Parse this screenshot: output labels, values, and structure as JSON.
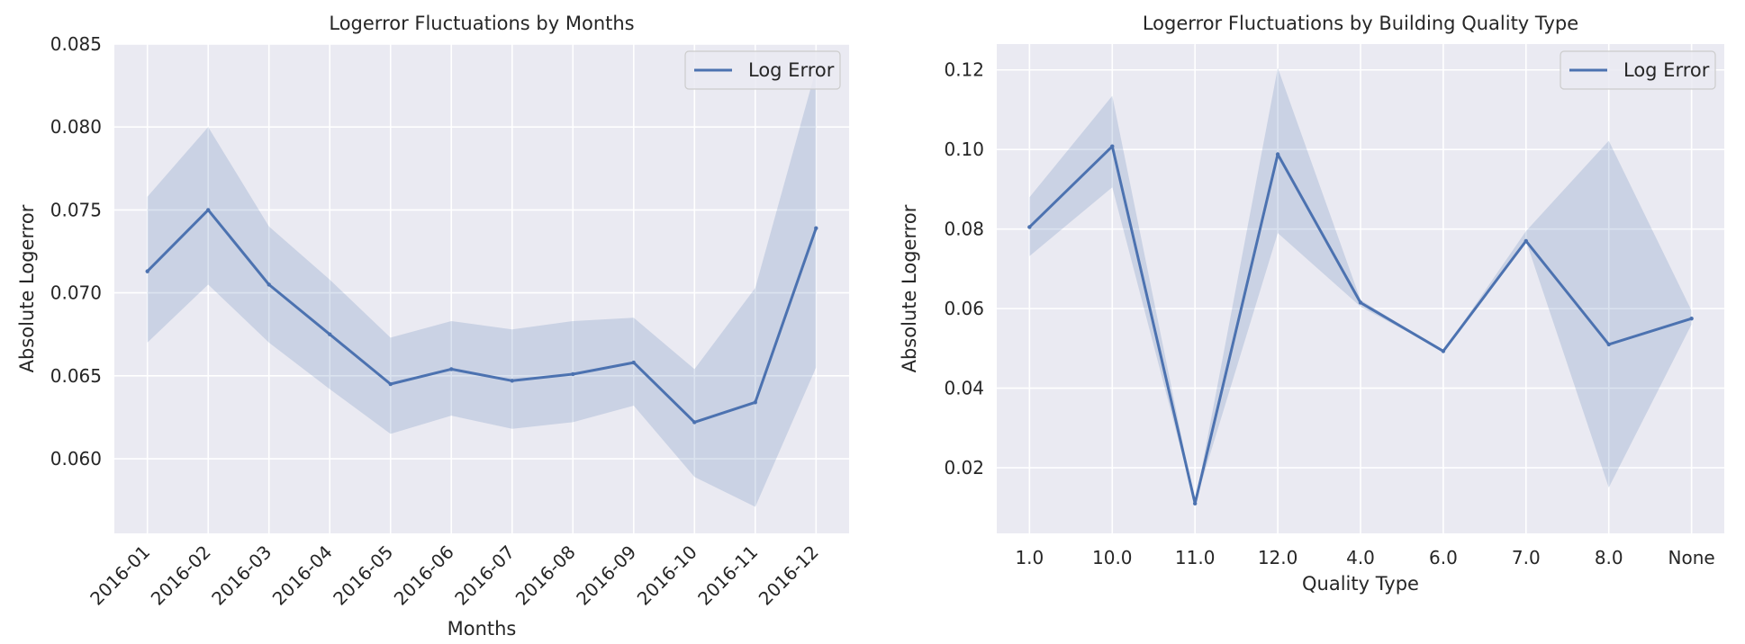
{
  "chart_data": [
    {
      "type": "line",
      "title": "Logerror Fluctuations by Months",
      "xlabel": "Months",
      "ylabel": "Absolute Logerror",
      "categories": [
        "2016-01",
        "2016-02",
        "2016-03",
        "2016-04",
        "2016-05",
        "2016-06",
        "2016-07",
        "2016-08",
        "2016-09",
        "2016-10",
        "2016-11",
        "2016-12"
      ],
      "series": [
        {
          "name": "Log Error",
          "values": [
            0.0713,
            0.075,
            0.0705,
            0.0675,
            0.0645,
            0.0654,
            0.0647,
            0.0651,
            0.0658,
            0.0622,
            0.0634,
            0.0739
          ],
          "ci_low": [
            0.067,
            0.0705,
            0.067,
            0.0642,
            0.0615,
            0.0626,
            0.0618,
            0.0622,
            0.0632,
            0.0589,
            0.0571,
            0.0655
          ],
          "ci_high": [
            0.0758,
            0.08,
            0.074,
            0.0708,
            0.0673,
            0.0683,
            0.0678,
            0.0683,
            0.0685,
            0.0654,
            0.0703,
            0.0835
          ]
        }
      ],
      "ylim": [
        0.0555,
        0.085
      ],
      "yticks": [
        0.06,
        0.065,
        0.07,
        0.075,
        0.08,
        0.085
      ],
      "ytick_labels": [
        "0.060",
        "0.065",
        "0.070",
        "0.075",
        "0.080",
        "0.085"
      ],
      "grid": true,
      "legend": "top-right",
      "xtick_rotation": 45
    },
    {
      "type": "line",
      "title": "Logerror Fluctuations by Building Quality Type",
      "xlabel": "Quality Type",
      "ylabel": "Absolute Logerror",
      "categories": [
        "1.0",
        "10.0",
        "11.0",
        "12.0",
        "4.0",
        "6.0",
        "7.0",
        "8.0",
        "None"
      ],
      "series": [
        {
          "name": "Log Error",
          "values": [
            0.0805,
            0.1008,
            0.011,
            0.0988,
            0.0615,
            0.0493,
            0.077,
            0.051,
            0.0575
          ],
          "ci_low": [
            0.0732,
            0.0905,
            0.011,
            0.079,
            0.0605,
            0.0493,
            0.077,
            0.015,
            0.056
          ],
          "ci_high": [
            0.088,
            0.1135,
            0.011,
            0.1205,
            0.0622,
            0.0493,
            0.0795,
            0.1022,
            0.0595
          ]
        }
      ],
      "ylim": [
        0.0035,
        0.1265
      ],
      "yticks": [
        0.02,
        0.04,
        0.06,
        0.08,
        0.1,
        0.12
      ],
      "ytick_labels": [
        "0.02",
        "0.04",
        "0.06",
        "0.08",
        "0.10",
        "0.12"
      ],
      "grid": true,
      "legend": "top-right",
      "xtick_rotation": 0
    }
  ],
  "colors": {
    "background": "#eaeaf2",
    "grid": "#ffffff",
    "line": "#4c72b0",
    "band": "#4c72b0",
    "text": "#262626",
    "legend_edge": "#cccccc"
  }
}
